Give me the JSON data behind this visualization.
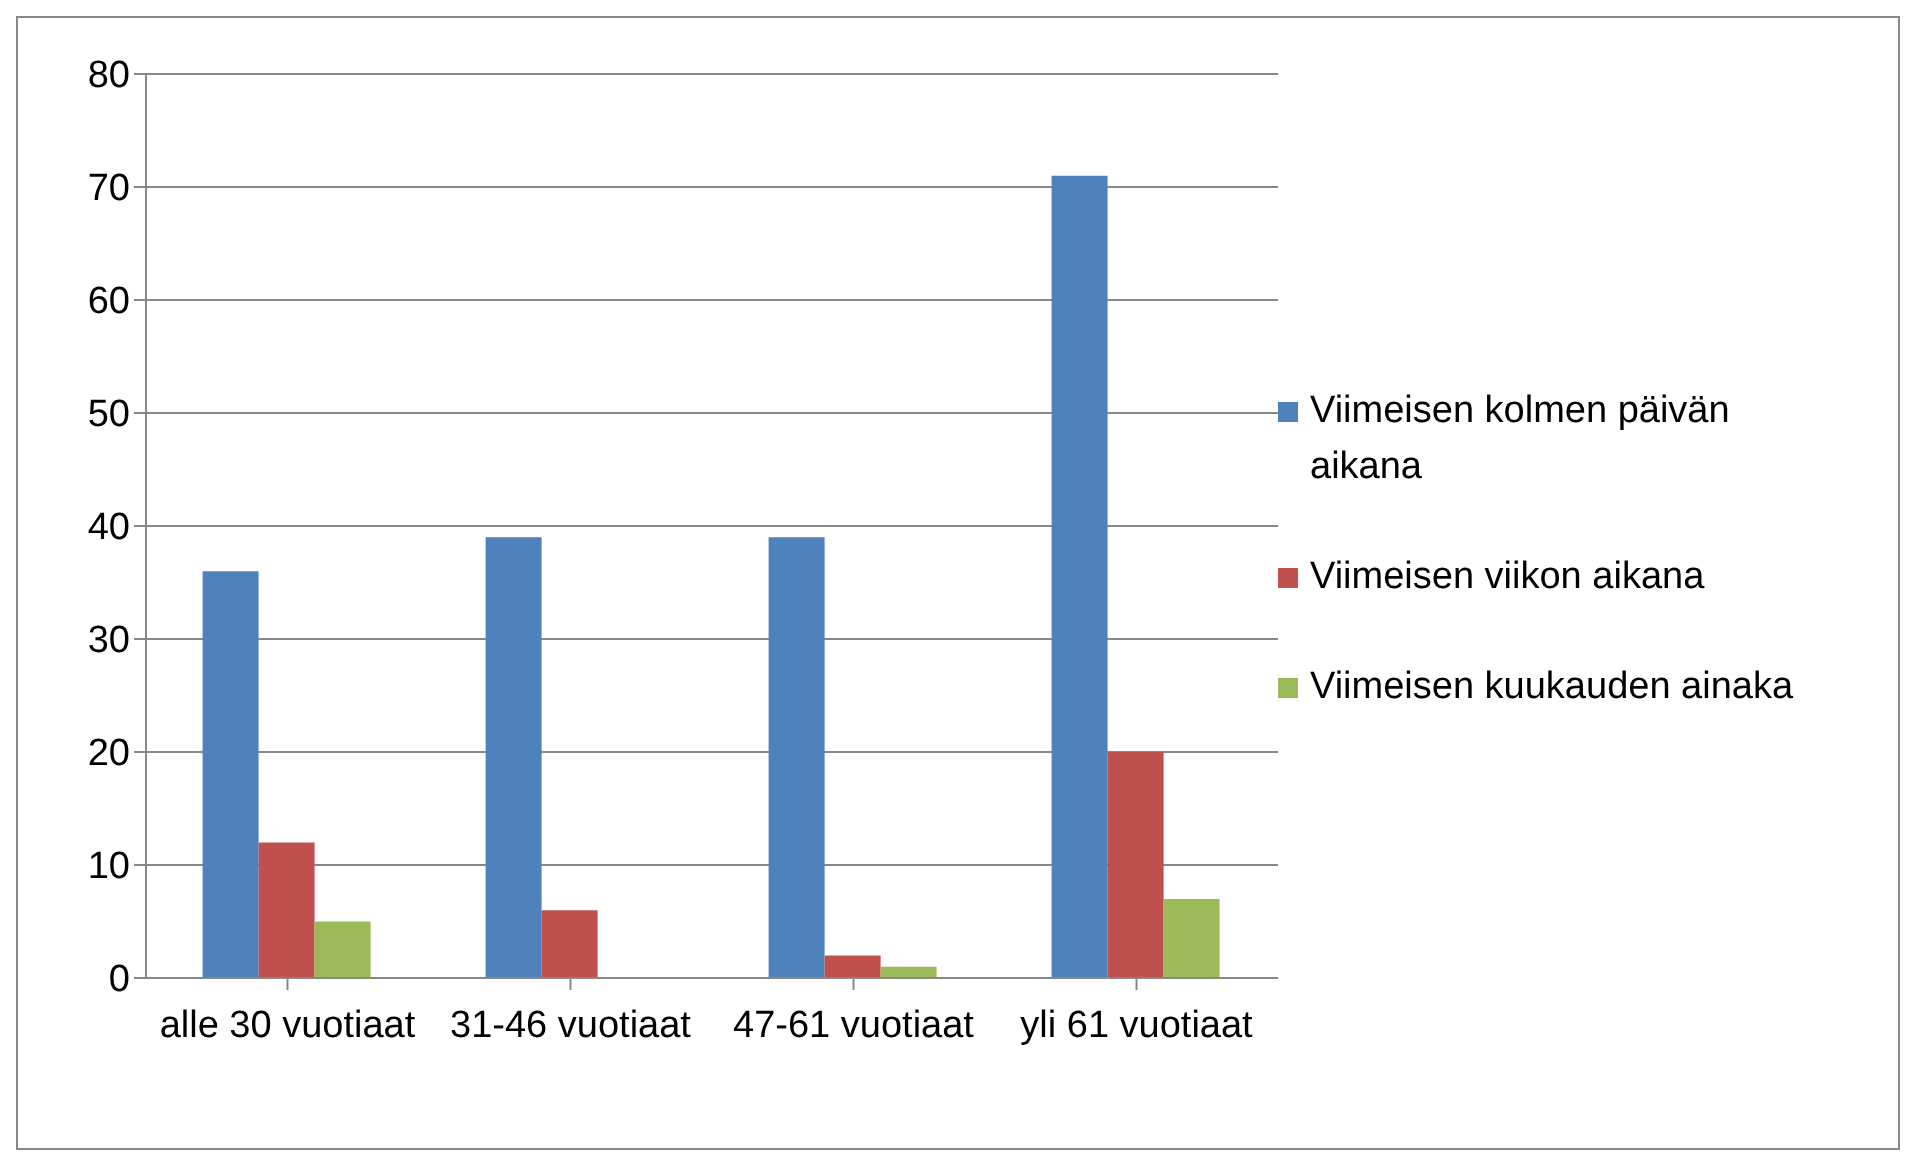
{
  "chart_data": {
    "type": "bar",
    "categories": [
      "alle 30 vuotiaat",
      "31-46 vuotiaat",
      "47-61 vuotiaat",
      "yli 61 vuotiaat"
    ],
    "series": [
      {
        "name": "Viimeisen kolmen päivän aikana",
        "color": "#4f81bd",
        "values": [
          36,
          39,
          39,
          71
        ]
      },
      {
        "name": "Viimeisen viikon aikana",
        "color": "#c0504d",
        "values": [
          12,
          6,
          2,
          20
        ]
      },
      {
        "name": "Viimeisen kuukauden ainaka",
        "color": "#9bbb59",
        "values": [
          5,
          0,
          1,
          7
        ]
      }
    ],
    "ylim": [
      0,
      80
    ],
    "yticks": [
      0,
      10,
      20,
      30,
      40,
      50,
      60,
      70,
      80
    ],
    "grid": "y",
    "legend": "right"
  }
}
